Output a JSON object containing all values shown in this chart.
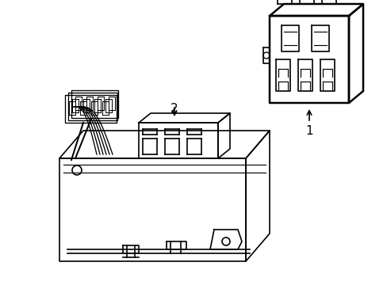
{
  "bg_color": "#ffffff",
  "line_color": "#000000",
  "line_width": 1.2,
  "label_1": "1",
  "label_2": "2",
  "title": "",
  "fig_width": 4.89,
  "fig_height": 3.6,
  "dpi": 100
}
